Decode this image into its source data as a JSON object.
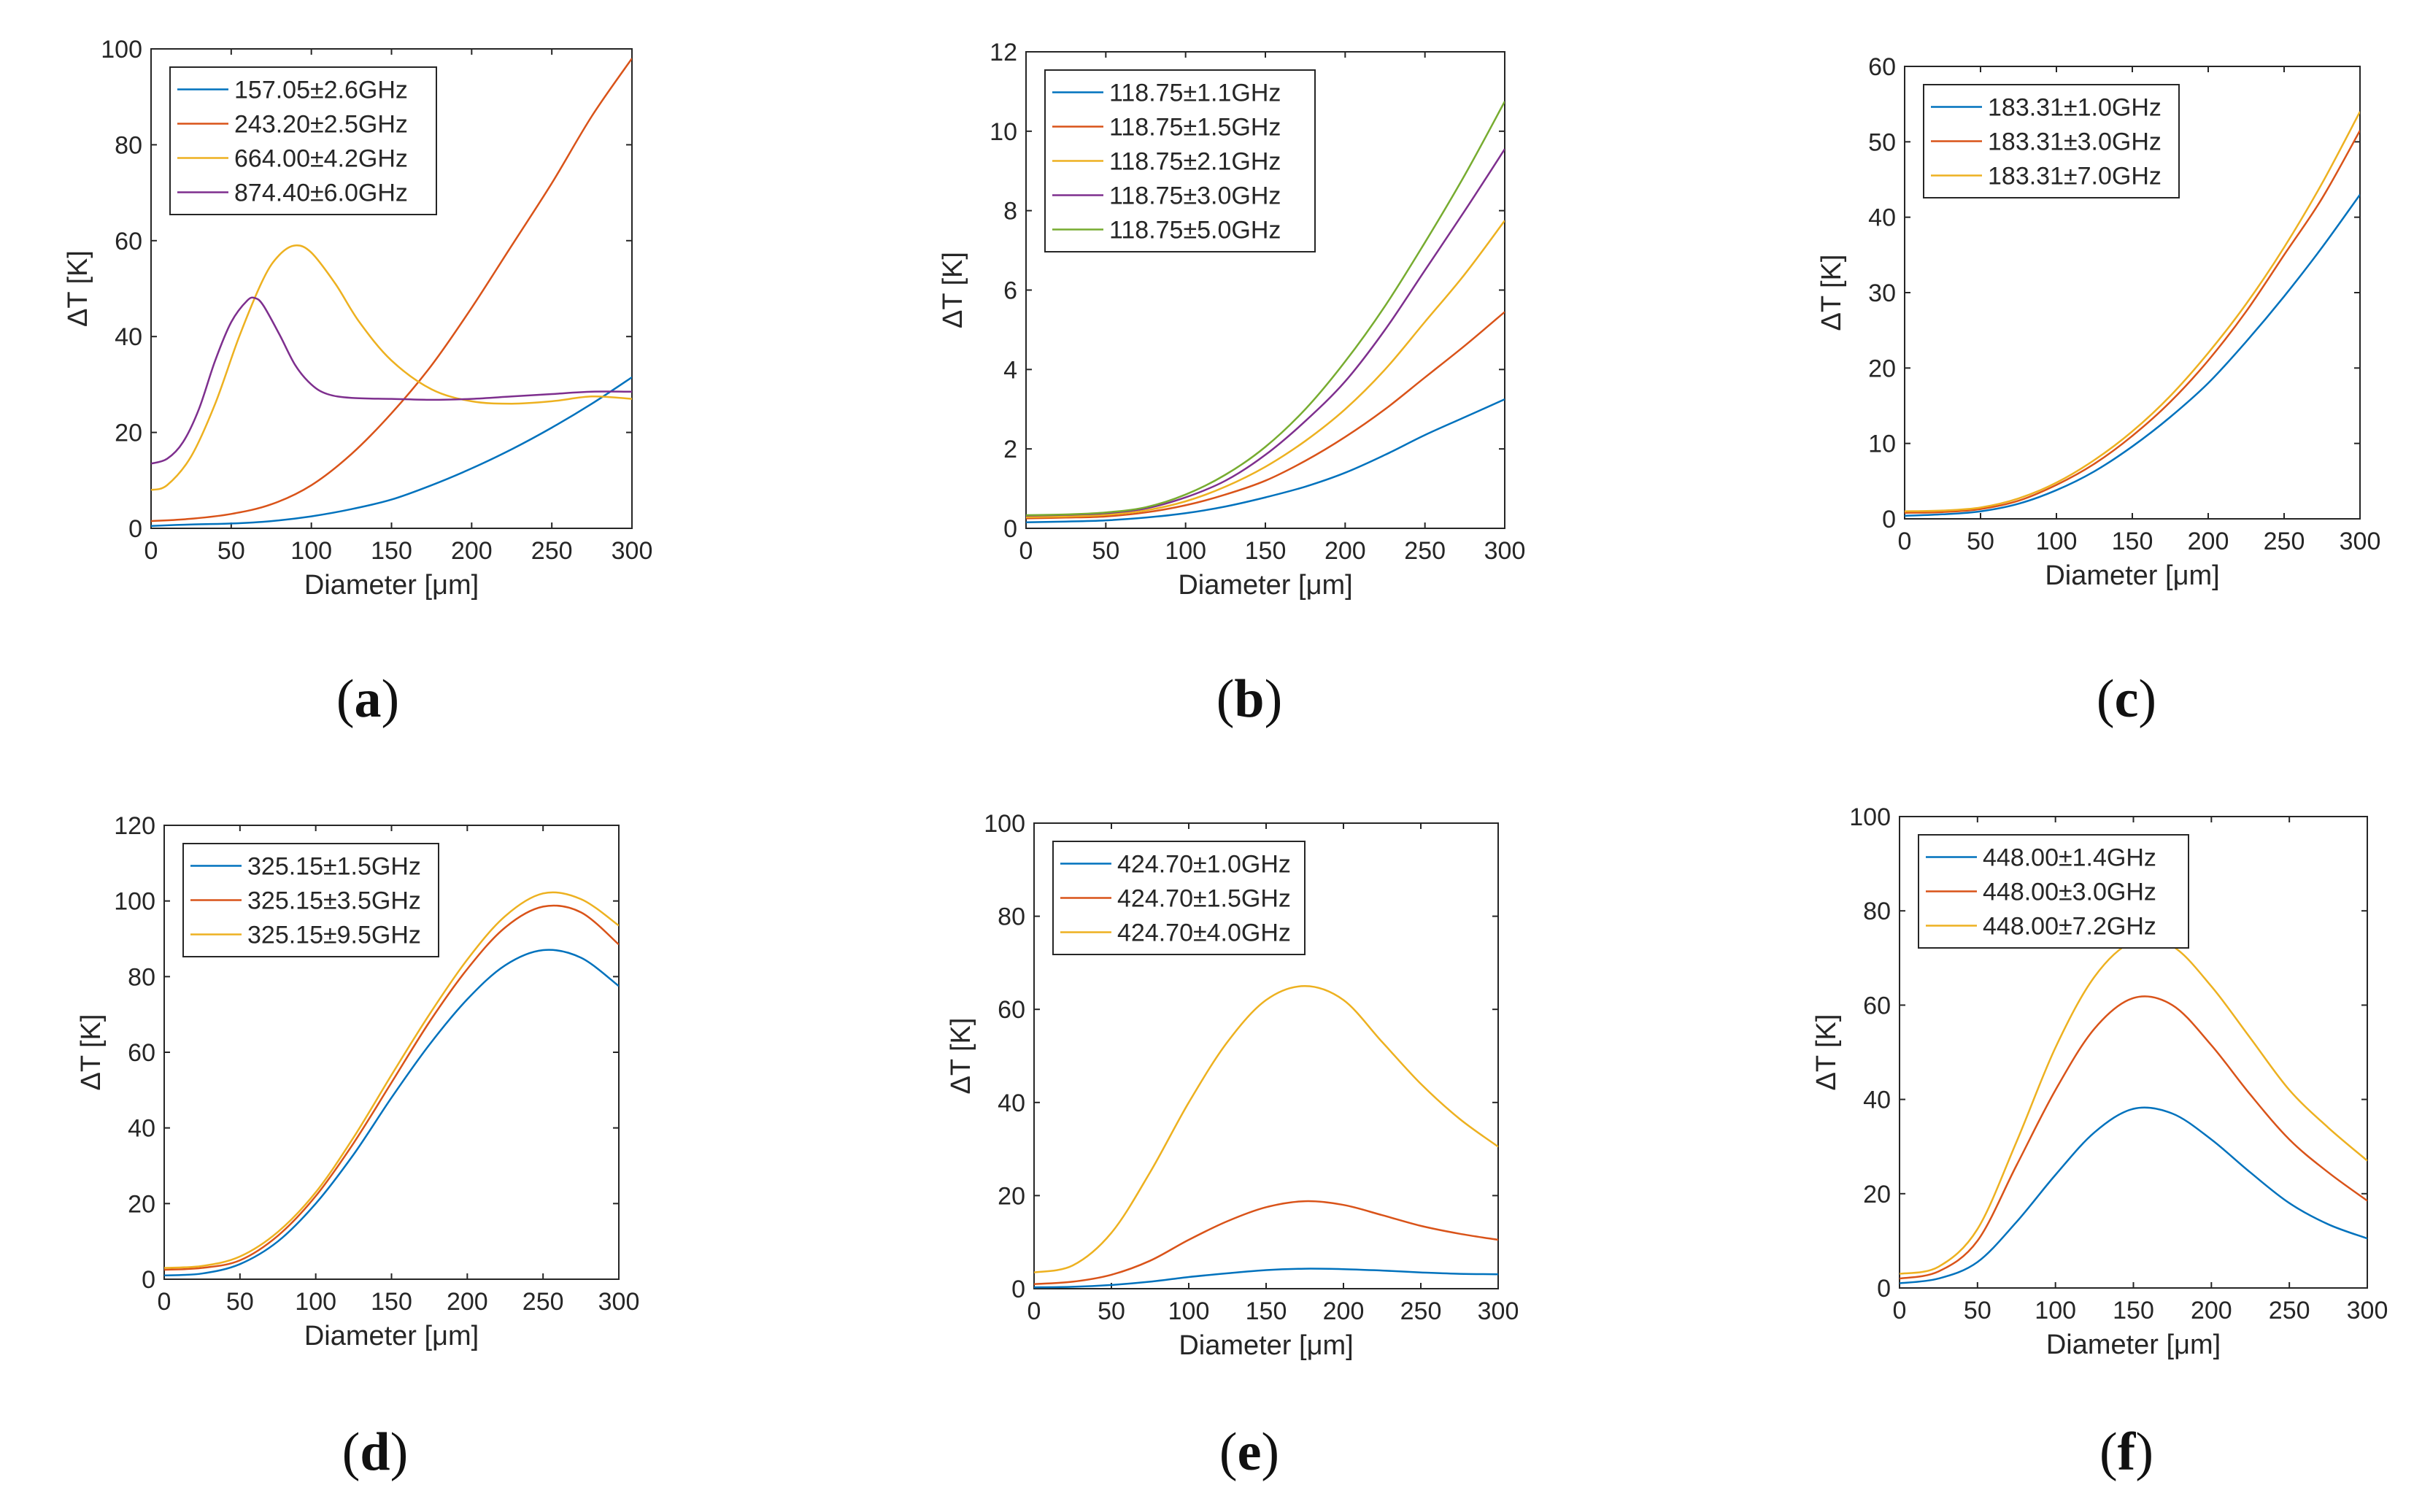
{
  "figure": {
    "panels": [
      {
        "caption": "a",
        "caption_text": "(a)",
        "chart_data": {
          "type": "line",
          "title": "",
          "xlabel": "Diameter [μm]",
          "ylabel": "ΔT [K]",
          "xlim": [
            0,
            300
          ],
          "ylim": [
            0,
            100
          ],
          "xticks": [
            0,
            50,
            100,
            150,
            200,
            250,
            300
          ],
          "yticks": [
            0,
            20,
            40,
            60,
            80,
            100
          ],
          "legend_position": "top-left",
          "x": [
            0,
            25,
            50,
            75,
            100,
            125,
            150,
            175,
            200,
            225,
            250,
            275,
            300
          ],
          "series": [
            {
              "name": "157.05±2.6GHz",
              "color": "#0072BD",
              "values": [
                0.5,
                0.8,
                1.0,
                1.5,
                2.5,
                4.0,
                6.0,
                9.0,
                12.5,
                16.5,
                21.0,
                26.0,
                31.5
              ]
            },
            {
              "name": "243.20±2.5GHz",
              "color": "#D95319",
              "values": [
                1.5,
                2.0,
                3.0,
                5.0,
                9.0,
                15.5,
                24.0,
                34.0,
                46.0,
                59.0,
                72.0,
                86.0,
                98.0
              ]
            },
            {
              "name": "664.00±4.2GHz",
              "color": "#EDB120",
              "x": [
                0,
                10,
                25,
                40,
                55,
                70,
                80,
                90,
                100,
                115,
                130,
                150,
                175,
                200,
                225,
                250,
                275,
                300
              ],
              "values": [
                8,
                9,
                15,
                26,
                40,
                52,
                57,
                59,
                57.5,
                51,
                43,
                35,
                29,
                26.5,
                26,
                26.5,
                27.5,
                27
              ]
            },
            {
              "name": "874.40±6.0GHz",
              "color": "#7E2F8E",
              "x": [
                0,
                10,
                20,
                30,
                40,
                50,
                60,
                65,
                70,
                80,
                90,
                100,
                110,
                125,
                150,
                175,
                200,
                225,
                250,
                275,
                300
              ],
              "values": [
                13.5,
                14.5,
                18,
                25,
                35,
                43,
                47.5,
                48,
                46.5,
                40.5,
                34,
                30,
                28,
                27.2,
                27,
                26.8,
                27,
                27.5,
                28,
                28.5,
                28.5
              ]
            }
          ]
        }
      },
      {
        "caption": "b",
        "caption_text": "(b)",
        "chart_data": {
          "type": "line",
          "title": "",
          "xlabel": "Diameter [μm]",
          "ylabel": "ΔT [K]",
          "xlim": [
            0,
            300
          ],
          "ylim": [
            0,
            12
          ],
          "xticks": [
            0,
            50,
            100,
            150,
            200,
            250,
            300
          ],
          "yticks": [
            0,
            2,
            4,
            6,
            8,
            10,
            12
          ],
          "legend_position": "top-left",
          "x": [
            0,
            25,
            50,
            75,
            100,
            125,
            150,
            175,
            200,
            225,
            250,
            275,
            300
          ],
          "series": [
            {
              "name": "118.75±1.1GHz",
              "color": "#0072BD",
              "values": [
                0.15,
                0.17,
                0.2,
                0.27,
                0.38,
                0.55,
                0.78,
                1.05,
                1.4,
                1.85,
                2.35,
                2.8,
                3.25
              ]
            },
            {
              "name": "118.75±1.5GHz",
              "color": "#D95319",
              "values": [
                0.25,
                0.27,
                0.3,
                0.4,
                0.58,
                0.85,
                1.2,
                1.7,
                2.3,
                3.0,
                3.8,
                4.6,
                5.45
              ]
            },
            {
              "name": "118.75±2.1GHz",
              "color": "#EDB120",
              "values": [
                0.28,
                0.3,
                0.34,
                0.45,
                0.68,
                1.05,
                1.55,
                2.2,
                3.0,
                4.0,
                5.2,
                6.4,
                7.75
              ]
            },
            {
              "name": "118.75±3.0GHz",
              "color": "#7E2F8E",
              "values": [
                0.32,
                0.34,
                0.38,
                0.5,
                0.78,
                1.2,
                1.85,
                2.7,
                3.7,
                5.0,
                6.5,
                8.0,
                9.55
              ]
            },
            {
              "name": "118.75±5.0GHz",
              "color": "#77AC30",
              "values": [
                0.33,
                0.35,
                0.4,
                0.53,
                0.85,
                1.35,
                2.05,
                3.0,
                4.2,
                5.6,
                7.2,
                8.9,
                10.75
              ]
            }
          ]
        }
      },
      {
        "caption": "c",
        "caption_text": "(c)",
        "chart_data": {
          "type": "line",
          "title": "",
          "xlabel": "Diameter [μm]",
          "ylabel": "ΔT [K]",
          "xlim": [
            0,
            300
          ],
          "ylim": [
            0,
            60
          ],
          "xticks": [
            0,
            50,
            100,
            150,
            200,
            250,
            300
          ],
          "yticks": [
            0,
            10,
            20,
            30,
            40,
            50,
            60
          ],
          "legend_position": "top-left",
          "x": [
            0,
            25,
            50,
            75,
            100,
            125,
            150,
            175,
            200,
            225,
            250,
            275,
            300
          ],
          "series": [
            {
              "name": "183.31±1.0GHz",
              "color": "#0072BD",
              "values": [
                0.4,
                0.6,
                1.0,
                2.0,
                3.8,
                6.3,
                9.6,
                13.5,
                18.0,
                23.5,
                29.5,
                36.0,
                43.0
              ]
            },
            {
              "name": "183.31±3.0GHz",
              "color": "#D95319",
              "values": [
                0.8,
                0.9,
                1.3,
                2.4,
                4.5,
                7.3,
                11.0,
                15.5,
                21.0,
                27.5,
                35.0,
                42.5,
                51.5
              ]
            },
            {
              "name": "183.31±7.0GHz",
              "color": "#EDB120",
              "values": [
                1.0,
                1.1,
                1.5,
                2.7,
                4.8,
                7.8,
                11.6,
                16.3,
                22.0,
                28.5,
                36.0,
                44.5,
                54.0
              ]
            }
          ]
        }
      },
      {
        "caption": "d",
        "caption_text": "(d)",
        "chart_data": {
          "type": "line",
          "title": "",
          "xlabel": "Diameter [μm]",
          "ylabel": "ΔT [K]",
          "xlim": [
            0,
            300
          ],
          "ylim": [
            0,
            120
          ],
          "xticks": [
            0,
            50,
            100,
            150,
            200,
            250,
            300
          ],
          "yticks": [
            0,
            20,
            40,
            60,
            80,
            100,
            120
          ],
          "legend_position": "top-left",
          "x": [
            0,
            25,
            50,
            75,
            100,
            125,
            150,
            175,
            200,
            225,
            250,
            275,
            300
          ],
          "series": [
            {
              "name": "325.15±1.5GHz",
              "color": "#0072BD",
              "values": [
                1.0,
                1.5,
                4.0,
                10.0,
                20.0,
                33.0,
                48.0,
                62.0,
                74.0,
                83.0,
                87.0,
                85.0,
                77.5
              ]
            },
            {
              "name": "325.15±3.5GHz",
              "color": "#D95319",
              "values": [
                2.5,
                3.0,
                5.0,
                11.5,
                22.0,
                36.0,
                52.0,
                68.0,
                82.0,
                93.0,
                98.5,
                97.0,
                88.5
              ]
            },
            {
              "name": "325.15±9.5GHz",
              "color": "#EDB120",
              "values": [
                3.0,
                3.5,
                6.0,
                12.5,
                23.0,
                37.5,
                54.0,
                70.0,
                84.5,
                96.0,
                102.0,
                100.5,
                93.5
              ]
            }
          ]
        }
      },
      {
        "caption": "e",
        "caption_text": "(e)",
        "chart_data": {
          "type": "line",
          "title": "",
          "xlabel": "Diameter [μm]",
          "ylabel": "ΔT [K]",
          "xlim": [
            0,
            300
          ],
          "ylim": [
            0,
            100
          ],
          "xticks": [
            0,
            50,
            100,
            150,
            200,
            250,
            300
          ],
          "yticks": [
            0,
            20,
            40,
            60,
            80,
            100
          ],
          "legend_position": "top-left",
          "x": [
            0,
            25,
            50,
            75,
            100,
            125,
            150,
            175,
            200,
            225,
            250,
            275,
            300
          ],
          "series": [
            {
              "name": "424.70±1.0GHz",
              "color": "#0072BD",
              "values": [
                0.3,
                0.4,
                0.8,
                1.5,
                2.5,
                3.3,
                4.0,
                4.3,
                4.2,
                3.9,
                3.5,
                3.2,
                3.1
              ]
            },
            {
              "name": "424.70±1.5GHz",
              "color": "#D95319",
              "values": [
                1.0,
                1.5,
                3.0,
                6.0,
                10.5,
                14.5,
                17.5,
                18.8,
                18.0,
                15.8,
                13.5,
                11.8,
                10.5
              ]
            },
            {
              "name": "424.70±4.0GHz",
              "color": "#EDB120",
              "values": [
                3.5,
                5.0,
                12.0,
                25.0,
                40.0,
                53.0,
                62.0,
                65.0,
                62.0,
                53.0,
                44.0,
                36.5,
                30.5
              ]
            }
          ]
        }
      },
      {
        "caption": "f",
        "caption_text": "(f)",
        "chart_data": {
          "type": "line",
          "title": "",
          "xlabel": "Diameter [μm]",
          "ylabel": "ΔT [K]",
          "xlim": [
            0,
            300
          ],
          "ylim": [
            0,
            100
          ],
          "xticks": [
            0,
            50,
            100,
            150,
            200,
            250,
            300
          ],
          "yticks": [
            0,
            20,
            40,
            60,
            80,
            100
          ],
          "legend_position": "top-left",
          "x": [
            0,
            25,
            50,
            75,
            100,
            125,
            150,
            175,
            200,
            225,
            250,
            275,
            300
          ],
          "series": [
            {
              "name": "448.00±1.4GHz",
              "color": "#0072BD",
              "values": [
                1.0,
                2.0,
                5.5,
                14.0,
                24.0,
                33.0,
                38.0,
                37.0,
                31.5,
                24.5,
                18.0,
                13.5,
                10.5
              ]
            },
            {
              "name": "448.00±3.0GHz",
              "color": "#D95319",
              "values": [
                2.0,
                3.5,
                10.0,
                26.0,
                42.0,
                55.0,
                61.5,
                60.0,
                51.5,
                41.0,
                31.5,
                24.5,
                18.5
              ]
            },
            {
              "name": "448.00±7.2GHz",
              "color": "#EDB120",
              "values": [
                3.0,
                4.5,
                12.5,
                31.0,
                51.0,
                66.0,
                73.5,
                72.5,
                64.0,
                53.0,
                42.0,
                34.0,
                27.0
              ]
            }
          ]
        }
      }
    ]
  }
}
